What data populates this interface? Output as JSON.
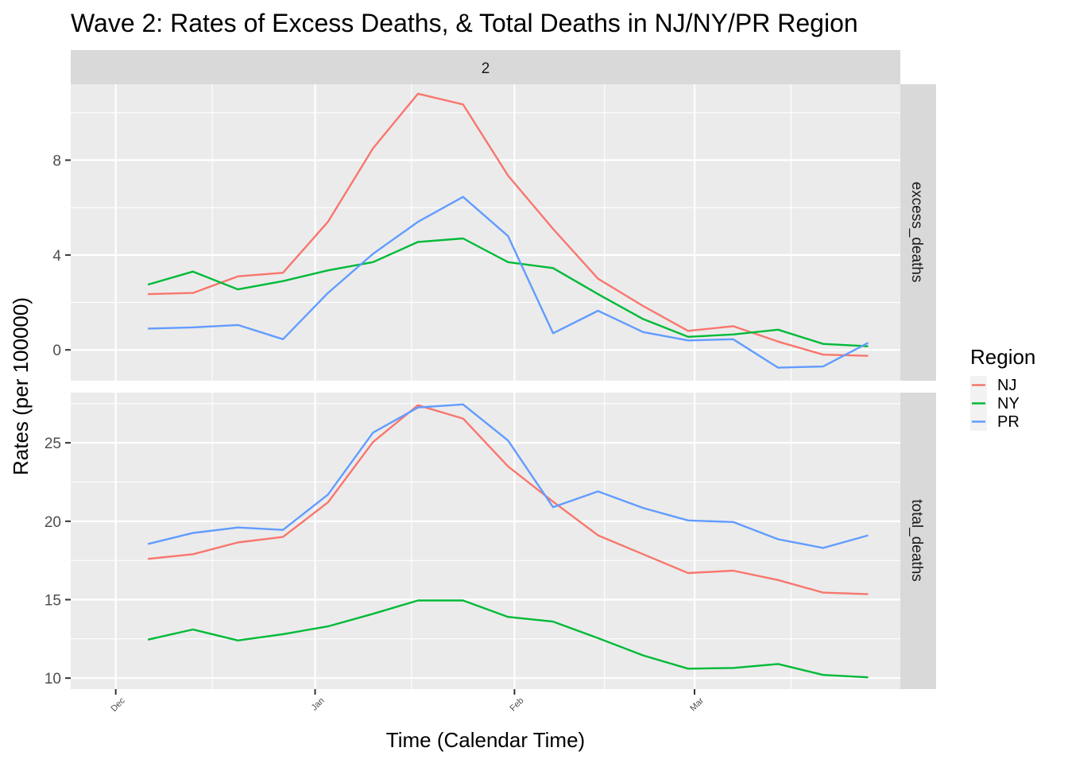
{
  "chart_data": {
    "type": "line",
    "title": "Wave 2: Rates of Excess Deaths, & Total Deaths in NJ/NY/PR Region",
    "xlabel": "Time (Calendar Time)",
    "ylabel": "Rates (per 100000)",
    "column_facet": "2",
    "x_ticks": [
      "Dec",
      "Jan",
      "Feb",
      "Mar"
    ],
    "x": [
      "2020-12-06",
      "2020-12-13",
      "2020-12-20",
      "2020-12-27",
      "2021-01-03",
      "2021-01-10",
      "2021-01-17",
      "2021-01-24",
      "2021-01-31",
      "2021-02-07",
      "2021-02-14",
      "2021-02-21",
      "2021-02-28",
      "2021-03-07",
      "2021-03-14",
      "2021-03-21",
      "2021-03-28"
    ],
    "legend": {
      "title": "Region",
      "position": "right",
      "entries": [
        "NJ",
        "NY",
        "PR"
      ]
    },
    "colors": {
      "NJ": "#F8766D",
      "NY": "#00BA38",
      "PR": "#619CFF"
    },
    "grid": true,
    "panels": [
      {
        "name": "excess_deaths",
        "ylim": [
          -1.3,
          11.2
        ],
        "y_ticks": [
          "0",
          "4",
          "8"
        ],
        "series": [
          {
            "name": "NJ",
            "values": [
              2.35,
              2.4,
              3.1,
              3.25,
              5.4,
              8.5,
              10.8,
              10.35,
              7.35,
              5.1,
              3.0,
              1.85,
              0.8,
              1.0,
              0.35,
              -0.2,
              -0.25
            ]
          },
          {
            "name": "NY",
            "values": [
              2.75,
              3.3,
              2.55,
              2.9,
              3.35,
              3.7,
              4.55,
              4.7,
              3.7,
              3.45,
              2.35,
              1.3,
              0.55,
              0.65,
              0.85,
              0.25,
              0.15
            ]
          },
          {
            "name": "PR",
            "values": [
              0.9,
              0.95,
              1.05,
              0.45,
              2.4,
              4.05,
              5.4,
              6.45,
              4.8,
              0.7,
              1.65,
              0.75,
              0.4,
              0.45,
              -0.75,
              -0.7,
              0.3
            ]
          }
        ]
      },
      {
        "name": "total_deaths",
        "ylim": [
          9.3,
          28.2
        ],
        "y_ticks": [
          "10",
          "15",
          "20",
          "25"
        ],
        "series": [
          {
            "name": "NJ",
            "values": [
              17.6,
              17.9,
              18.65,
              19.0,
              21.2,
              25.05,
              27.4,
              26.55,
              23.5,
              21.25,
              19.1,
              17.9,
              16.7,
              16.85,
              16.25,
              15.45,
              15.35
            ]
          },
          {
            "name": "NY",
            "values": [
              12.45,
              13.1,
              12.4,
              12.8,
              13.3,
              14.1,
              14.95,
              14.95,
              13.9,
              13.6,
              12.55,
              11.45,
              10.6,
              10.65,
              10.9,
              10.2,
              10.05
            ]
          },
          {
            "name": "PR",
            "values": [
              18.55,
              19.25,
              19.6,
              19.45,
              21.7,
              25.65,
              27.25,
              27.45,
              25.15,
              20.9,
              21.9,
              20.85,
              20.05,
              19.95,
              18.85,
              18.3,
              19.1
            ]
          }
        ]
      }
    ]
  }
}
